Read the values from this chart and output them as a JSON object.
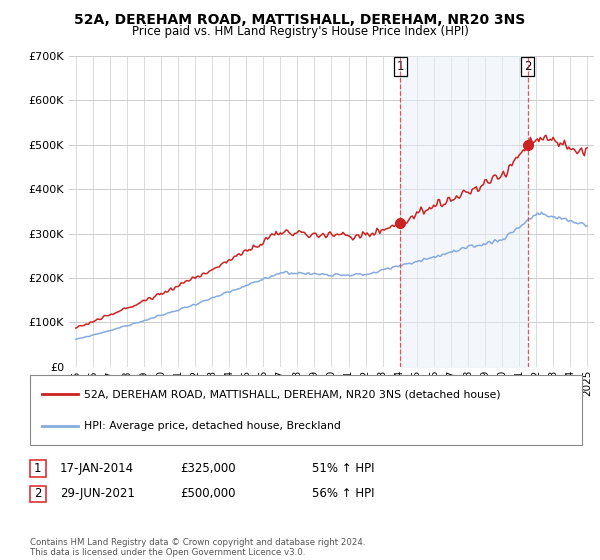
{
  "title": "52A, DEREHAM ROAD, MATTISHALL, DEREHAM, NR20 3NS",
  "subtitle": "Price paid vs. HM Land Registry's House Price Index (HPI)",
  "legend_line1": "52A, DEREHAM ROAD, MATTISHALL, DEREHAM, NR20 3NS (detached house)",
  "legend_line2": "HPI: Average price, detached house, Breckland",
  "sale1_label": "1",
  "sale1_date": "17-JAN-2014",
  "sale1_price": "£325,000",
  "sale1_hpi": "51% ↑ HPI",
  "sale1_year": 2014.04,
  "sale1_value": 325000,
  "sale2_label": "2",
  "sale2_date": "29-JUN-2021",
  "sale2_price": "£500,000",
  "sale2_hpi": "56% ↑ HPI",
  "sale2_year": 2021.5,
  "sale2_value": 500000,
  "footer": "Contains HM Land Registry data © Crown copyright and database right 2024.\nThis data is licensed under the Open Government Licence v3.0.",
  "red_line_color": "#cc2222",
  "blue_line_color": "#88aadd",
  "vline_color": "#dd3333",
  "grid_color": "#cccccc",
  "background_color": "#ffffff",
  "ylim": [
    0,
    700000
  ],
  "yticks": [
    0,
    100000,
    200000,
    300000,
    400000,
    500000,
    600000,
    700000
  ],
  "start_year": 1995,
  "end_year": 2025
}
